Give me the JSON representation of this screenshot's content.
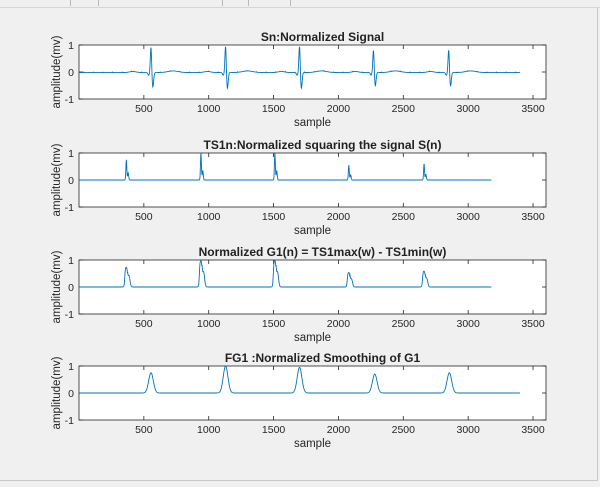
{
  "chart_data": [
    {
      "type": "line",
      "title": "Sn:Normalized Signal",
      "xlabel": "sample",
      "ylabel": "amplitude(mv)",
      "xlim": [
        0,
        3600
      ],
      "ylim": [
        -1,
        1
      ],
      "xticks": [
        500,
        1000,
        1500,
        2000,
        2500,
        3000,
        3500
      ],
      "yticks": [
        -1,
        0,
        1
      ],
      "grid": false,
      "series": [
        {
          "color": "#0072bd",
          "x_start": 1,
          "x_end": 3400,
          "baseline": -0.02,
          "peaks": [
            {
              "x": 555,
              "shape": "qrs",
              "amp": 0.95,
              "neg": -0.55
            },
            {
              "x": 1130,
              "shape": "qrs",
              "amp": 1.0,
              "neg": -0.6
            },
            {
              "x": 1700,
              "shape": "qrs",
              "amp": 1.0,
              "neg": -0.6
            },
            {
              "x": 2270,
              "shape": "qrs",
              "amp": 0.85,
              "neg": -0.5
            },
            {
              "x": 2850,
              "shape": "qrs",
              "amp": 0.85,
              "neg": -0.5
            }
          ]
        }
      ]
    },
    {
      "type": "line",
      "title": "TS1n:Normalized squaring the signal S(n)",
      "xlabel": "sample",
      "ylabel": "amplitude(mv)",
      "xlim": [
        0,
        3600
      ],
      "ylim": [
        -1,
        1
      ],
      "xticks": [
        500,
        1000,
        1500,
        2000,
        2500,
        3000,
        3500
      ],
      "yticks": [
        -1,
        0,
        1
      ],
      "grid": false,
      "series": [
        {
          "color": "#0072bd",
          "x_start": 1,
          "x_end": 3180,
          "baseline": 0,
          "peaks": [
            {
              "x": 365,
              "shape": "spike",
              "amp": 0.75
            },
            {
              "x": 940,
              "shape": "spike",
              "amp": 1.0
            },
            {
              "x": 1510,
              "shape": "spike",
              "amp": 1.0
            },
            {
              "x": 2080,
              "shape": "spike",
              "amp": 0.55
            },
            {
              "x": 2660,
              "shape": "spike",
              "amp": 0.6
            }
          ]
        }
      ]
    },
    {
      "type": "line",
      "title": "Normalized G1(n) = TS1max(w) - TS1min(w)",
      "xlabel": "sample",
      "ylabel": "amplitude(mv)",
      "xlim": [
        0,
        3600
      ],
      "ylim": [
        -1,
        1
      ],
      "xticks": [
        500,
        1000,
        1500,
        2000,
        2500,
        3000,
        3500
      ],
      "yticks": [
        -1,
        0,
        1
      ],
      "grid": false,
      "series": [
        {
          "color": "#0072bd",
          "x_start": 1,
          "x_end": 3180,
          "baseline": 0,
          "peaks": [
            {
              "x": 365,
              "shape": "block",
              "amp": 0.75
            },
            {
              "x": 940,
              "shape": "block",
              "amp": 1.0
            },
            {
              "x": 1510,
              "shape": "block",
              "amp": 1.0
            },
            {
              "x": 2080,
              "shape": "block",
              "amp": 0.55
            },
            {
              "x": 2660,
              "shape": "block",
              "amp": 0.6
            }
          ]
        }
      ]
    },
    {
      "type": "line",
      "title": "FG1 :Normalized Smoothing of G1",
      "xlabel": "sample",
      "ylabel": "amplitude(mv)",
      "xlim": [
        0,
        3600
      ],
      "ylim": [
        -1,
        1
      ],
      "xticks": [
        500,
        1000,
        1500,
        2000,
        2500,
        3000,
        3500
      ],
      "yticks": [
        -1,
        0,
        1
      ],
      "grid": false,
      "series": [
        {
          "color": "#0072bd",
          "x_start": 1,
          "x_end": 3400,
          "baseline": 0,
          "peaks": [
            {
              "x": 555,
              "shape": "smooth",
              "amp": 0.75
            },
            {
              "x": 1130,
              "shape": "smooth",
              "amp": 1.0
            },
            {
              "x": 1700,
              "shape": "smooth",
              "amp": 0.95
            },
            {
              "x": 2280,
              "shape": "smooth",
              "amp": 0.7
            },
            {
              "x": 2855,
              "shape": "smooth",
              "amp": 0.75
            }
          ]
        }
      ]
    }
  ]
}
